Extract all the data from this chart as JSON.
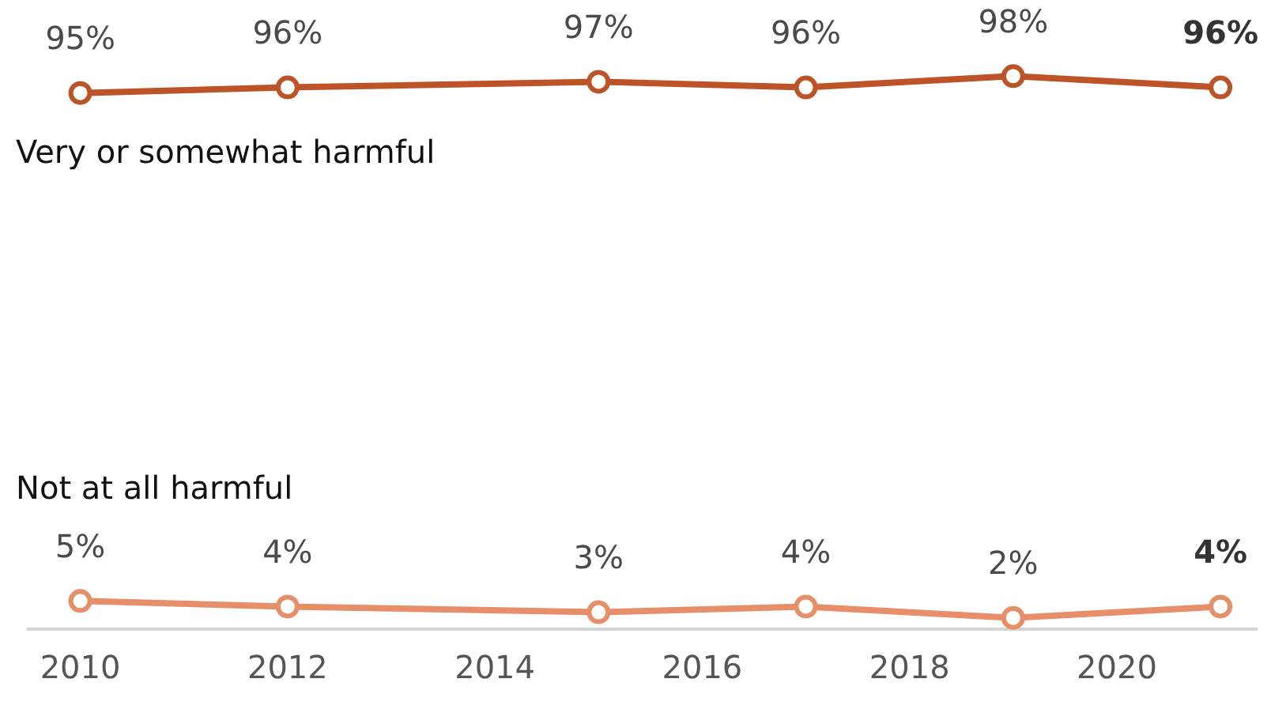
{
  "chart_data": {
    "type": "line",
    "x": [
      2010,
      2012,
      2015,
      2017,
      2019,
      2021
    ],
    "series": [
      {
        "name": "Very or somewhat harmful",
        "color": "#bd5428",
        "values": [
          95,
          96,
          97,
          96,
          98,
          96
        ],
        "value_labels": [
          "95%",
          "96%",
          "97%",
          "96%",
          "98%",
          "96%"
        ]
      },
      {
        "name": "Not at all harmful",
        "color": "#e68f69",
        "values": [
          5,
          4,
          3,
          4,
          2,
          4
        ],
        "value_labels": [
          "5%",
          "4%",
          "3%",
          "4%",
          "2%",
          "4%"
        ]
      }
    ],
    "xlim": [
      2009.5,
      2021.35
    ],
    "xticks": [
      2010,
      2012,
      2014,
      2016,
      2018,
      2020
    ],
    "marker": "circle",
    "line_style": "solid",
    "legend": false,
    "grid": false,
    "tick_labels": "x"
  }
}
